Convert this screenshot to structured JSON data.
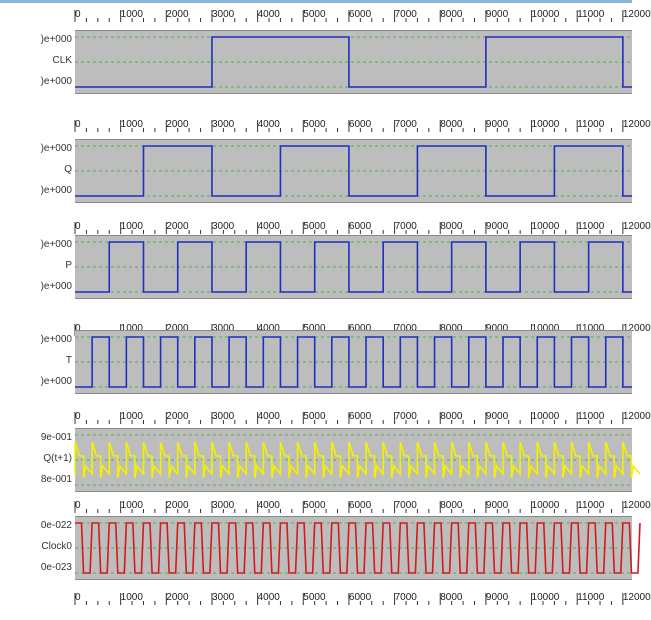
{
  "time_axis": {
    "labels": [
      "0",
      "1000",
      "2000",
      "3000",
      "4000",
      "5000",
      "6000",
      "7000",
      "8000",
      "9000",
      "10000",
      "11000",
      "12000"
    ],
    "min": 0,
    "max": 12200
  },
  "colors": {
    "background_plot": "#bdbdbd",
    "grid": "#4caf50",
    "blue_trace": "#1f2fbf",
    "yellow_trace": "#f2f200",
    "red_trace": "#d41a1a"
  },
  "signals": [
    {
      "name": "CLK",
      "max_label": ")e+000",
      "min_label": ")e+000",
      "color_key": "blue_trace",
      "kind": "square",
      "period": 6000,
      "first_high": 3000,
      "duty": 0.5
    },
    {
      "name": "Q",
      "max_label": ")e+000",
      "min_label": ")e+000",
      "color_key": "blue_trace",
      "kind": "square",
      "period": 3000,
      "first_high": 1500,
      "duty": 0.5
    },
    {
      "name": "P",
      "max_label": ")e+000",
      "min_label": ")e+000",
      "color_key": "blue_trace",
      "kind": "square",
      "period": 1500,
      "first_high": 750,
      "duty": 0.5
    },
    {
      "name": "T",
      "max_label": ")e+000",
      "min_label": ")e+000",
      "color_key": "blue_trace",
      "kind": "square",
      "period": 750,
      "first_high": 375,
      "duty": 0.5
    },
    {
      "name": "Q(t+1)",
      "max_label": "9e-001",
      "min_label": "8e-001",
      "color_key": "yellow_trace",
      "kind": "spiky",
      "period": 375,
      "first_high": 0,
      "duty": 0.5
    },
    {
      "name": "Clock0",
      "max_label": "0e-022",
      "min_label": "0e-023",
      "color_key": "red_trace",
      "kind": "trapezoid",
      "period": 375,
      "first_high": 0,
      "duty": 0.5
    }
  ]
}
